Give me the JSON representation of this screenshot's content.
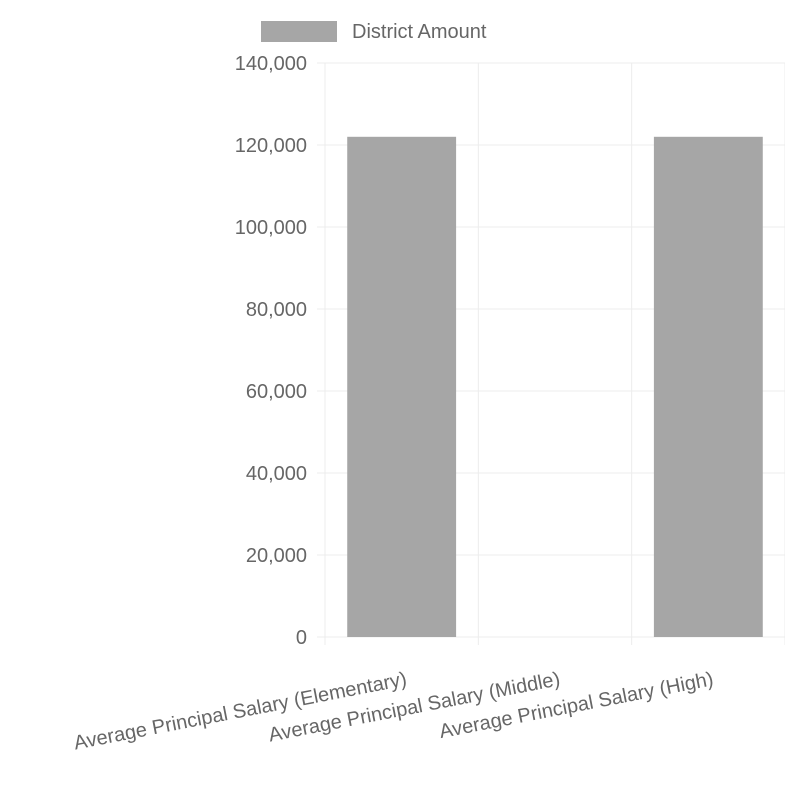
{
  "chart_data": {
    "type": "bar",
    "categories": [
      "Average Principal Salary (Elementary)",
      "Average Principal Salary (Middle)",
      "Average Principal Salary (High)"
    ],
    "series": [
      {
        "name": "District Amount",
        "values": [
          122000,
          0,
          122000
        ]
      }
    ],
    "ylim": [
      0,
      140000
    ],
    "yticks": [
      "0",
      "20,000",
      "40,000",
      "60,000",
      "80,000",
      "100,000",
      "120,000",
      "140,000"
    ],
    "ytick_values": [
      0,
      20000,
      40000,
      60000,
      80000,
      100000,
      120000,
      140000
    ],
    "grid": true,
    "legend_position": "top",
    "colors": {
      "bar": "#a6a6a6",
      "grid": "#ececec",
      "text": "#666666"
    }
  }
}
